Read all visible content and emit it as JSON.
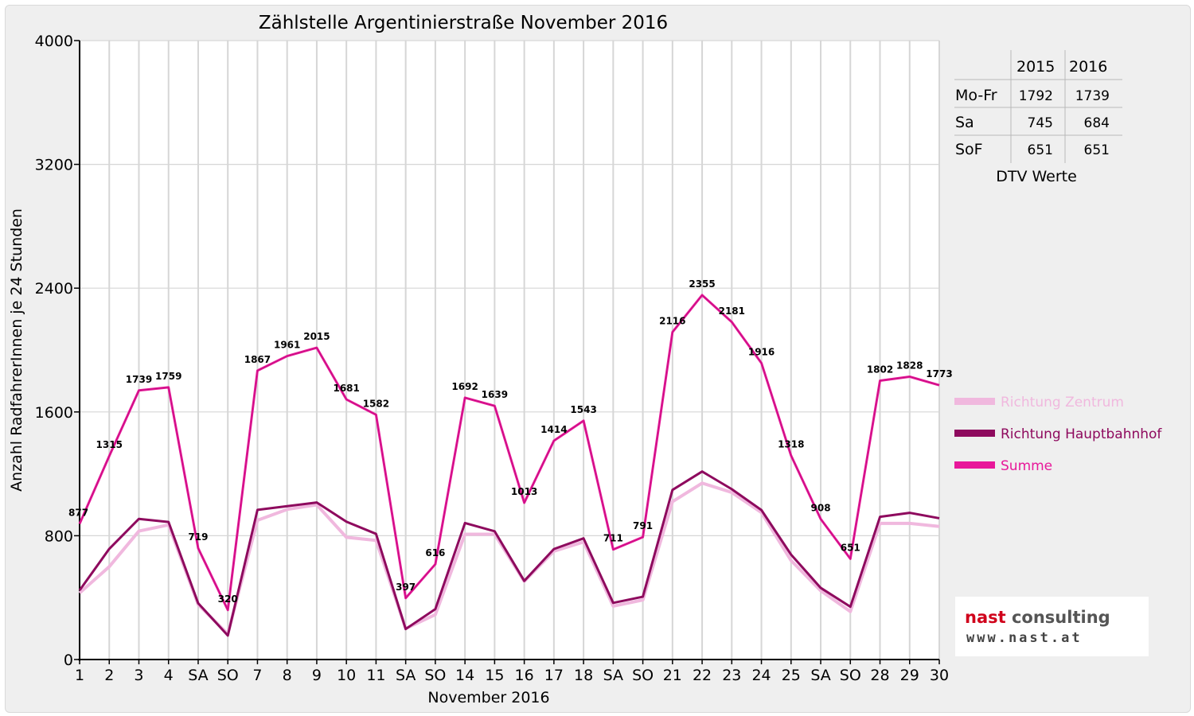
{
  "chart_data": {
    "type": "line",
    "title": "Zählstelle Argentinierstraße November 2016",
    "xlabel": "November 2016",
    "ylabel": "Anzahl RadfahrerInnen je 24 Stunden",
    "ylim": [
      0,
      4000
    ],
    "yticks": [
      "0",
      "800",
      "1600",
      "2400",
      "3200",
      "4000"
    ],
    "grid": true,
    "legend_position": "right",
    "categories": [
      "1",
      "2",
      "3",
      "4",
      "SA",
      "SO",
      "7",
      "8",
      "9",
      "10",
      "11",
      "SA",
      "SO",
      "14",
      "15",
      "16",
      "17",
      "18",
      "SA",
      "SO",
      "21",
      "22",
      "23",
      "24",
      "25",
      "SA",
      "SO",
      "28",
      "29",
      "30"
    ],
    "red_categories": [
      0,
      5,
      12,
      19,
      26
    ],
    "series": [
      {
        "name": "Richtung Zentrum",
        "color": "#f0b8de",
        "values": [
          430,
          600,
          830,
          870,
          355,
          165,
          900,
          970,
          1000,
          790,
          770,
          200,
          290,
          810,
          810,
          505,
          700,
          760,
          345,
          385,
          1020,
          1140,
          1080,
          950,
          640,
          445,
          310,
          880,
          880,
          860
        ]
      },
      {
        "name": "Richtung Hauptbahnhof",
        "color": "#8e0a5e",
        "values": [
          447,
          715,
          909,
          889,
          364,
          155,
          967,
          991,
          1015,
          891,
          812,
          197,
          326,
          882,
          829,
          508,
          714,
          783,
          366,
          406,
          1096,
          1215,
          1101,
          966,
          678,
          463,
          341,
          922,
          948,
          913
        ]
      },
      {
        "name": "Summe",
        "color": "#e8189a",
        "values": [
          877,
          1315,
          1739,
          1759,
          719,
          320,
          1867,
          1961,
          2015,
          1681,
          1582,
          397,
          616,
          1692,
          1639,
          1013,
          1414,
          1543,
          711,
          791,
          2116,
          2355,
          2181,
          1916,
          1318,
          908,
          651,
          1802,
          1828,
          1773
        ]
      }
    ],
    "data_labels": [
      "877",
      "1315",
      "1739",
      "1759",
      "719",
      "320",
      "1867",
      "1961",
      "2015",
      "1681",
      "1582",
      "397",
      "616",
      "1692",
      "1639",
      "1013",
      "1414",
      "1543",
      "711",
      "791",
      "2116",
      "2355",
      "2181",
      "1916",
      "1318",
      "908",
      "651",
      "1802",
      "1828",
      "1773"
    ]
  },
  "dtv_table": {
    "columns": [
      "2015",
      "2016"
    ],
    "rows": [
      {
        "label": "Mo-Fr",
        "values": [
          "1792",
          "1739"
        ]
      },
      {
        "label": "Sa",
        "values": [
          "745",
          "684"
        ]
      },
      {
        "label": "SoF",
        "values": [
          "651",
          "651"
        ]
      }
    ],
    "caption": "DTV Werte"
  },
  "logo": {
    "name_part1": "nast",
    "name_part2": " consulting",
    "url": "www.nast.at",
    "accent_color": "#d0021b"
  }
}
